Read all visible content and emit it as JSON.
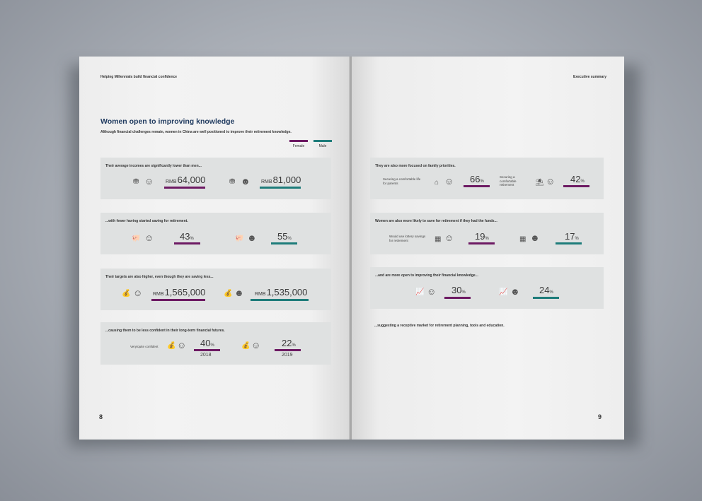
{
  "left_page": {
    "header": "Helping Millennials build financial confidence",
    "title": "Women open to improving knowledge",
    "subtitle": "Although financial challenges remain, women in China are well positioned to improve their retirement knowledge.",
    "legend": {
      "female": "Female",
      "male": "Male"
    },
    "page_number": "8",
    "panels": [
      {
        "title": "Their average incomes are significantly lower than men...",
        "female_unit": "RMB",
        "female_value": "64,000",
        "male_unit": "RMB",
        "male_value": "81,000"
      },
      {
        "title": "...with fewer having started saving for retirement.",
        "female_value": "43",
        "male_value": "55"
      },
      {
        "title": "Their targets are also higher, even though they are saving less...",
        "female_unit": "RMB",
        "female_value": "1,565,000",
        "male_unit": "RMB",
        "male_value": "1,535,000"
      },
      {
        "title": "...causing them to be less confident in their long-term financial futures.",
        "label": "Very/quite confident",
        "value_2018": "40",
        "year_2018": "2018",
        "value_2019": "22",
        "year_2019": "2019"
      }
    ]
  },
  "right_page": {
    "header": "Executive summary",
    "page_number": "9",
    "panels": [
      {
        "title": "They are also more focused on family priorities.",
        "label_a": "Securing a comfortable life for parents",
        "value_a": "66",
        "label_b": "Securing a comfortable retirement",
        "value_b": "42"
      },
      {
        "title": "Women are also more likely to save for retirement if they had the funds...",
        "label": "Would use lottery savings for retirement",
        "female_value": "19",
        "male_value": "17"
      },
      {
        "title": "...and are more open to improving their financial knowledge...",
        "female_value": "30",
        "male_value": "24"
      }
    ],
    "footnote": "...suggesting a receptive market for retirement planning, tools and education."
  },
  "percent_sign": "%",
  "colors": {
    "female": "#6d1a63",
    "male": "#1e7c7a",
    "title": "#1f3a5f"
  },
  "icons": [
    "coins-icon",
    "woman-icon",
    "man-icon",
    "piggy-bank-icon",
    "money-bag-icon",
    "house-icon",
    "beach-icon",
    "lottery-icon",
    "chart-icon"
  ]
}
